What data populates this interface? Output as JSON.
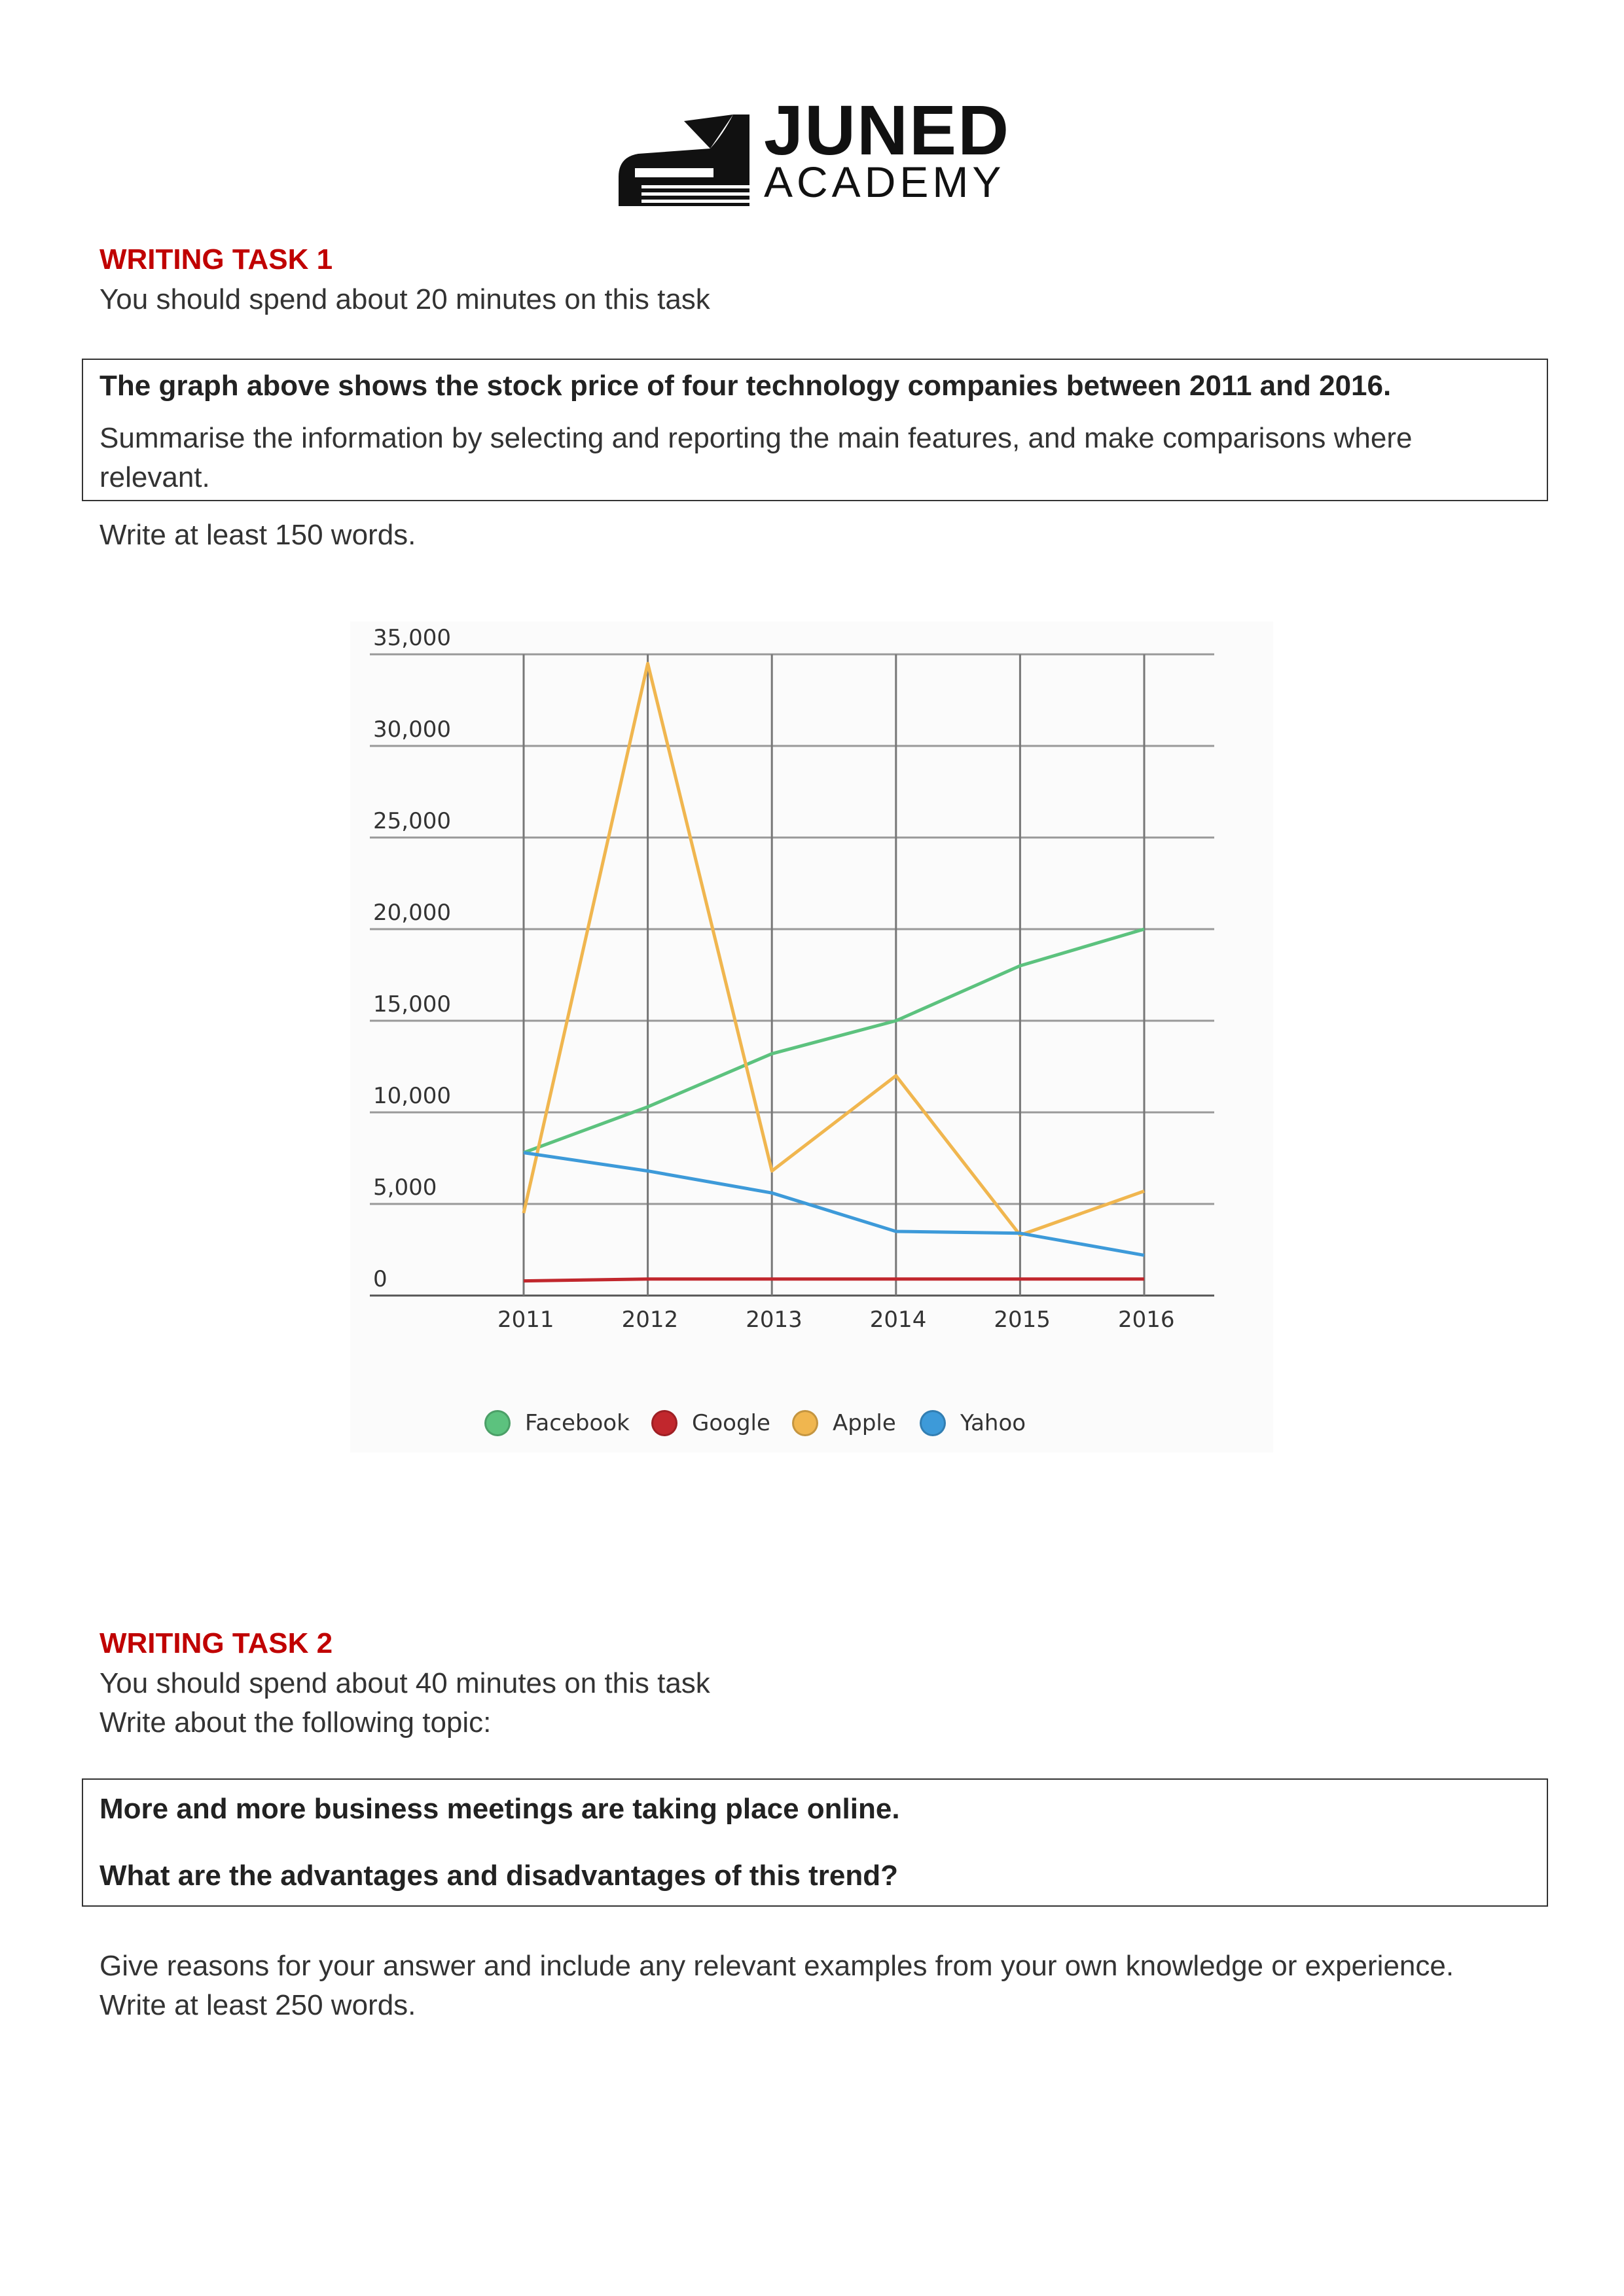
{
  "logo": {
    "line1": "JUNED",
    "line2": "ACADEMY"
  },
  "task1": {
    "heading": "WRITING TASK 1",
    "time_note": "You should spend about 20 minutes on this task",
    "prompt_bold": "The graph above shows the stock price of four technology companies between 2011 and 2016.",
    "prompt_line1": "Summarise the information by selecting and reporting the main features, and make comparisons where",
    "prompt_line2": "relevant.",
    "word_limit": "Write at least 150 words."
  },
  "task2": {
    "heading": "WRITING TASK 2",
    "time_note": "You should spend about 40 minutes on this task",
    "topic_intro": "Write about the following topic:",
    "prompt_line1": "More and more business meetings are taking place online.",
    "prompt_line2": "What are the advantages and disadvantages of this trend?",
    "reasons": "Give reasons for your answer and include any relevant examples from your own knowledge or experience.",
    "word_limit": "Write at least 250 words."
  },
  "chart_data": {
    "type": "line",
    "x": [
      "2011",
      "2012",
      "2013",
      "2014",
      "2015",
      "2016"
    ],
    "y_ticks": [
      "35,000",
      "30,000",
      "25,000",
      "20,000",
      "15,000",
      "10,000",
      "5,000",
      "0"
    ],
    "ylim": [
      0,
      35000
    ],
    "grid": true,
    "legend_position": "bottom",
    "series": [
      {
        "name": "Facebook",
        "color": "#5cc27e",
        "values": [
          7800,
          10300,
          13200,
          15000,
          18000,
          20000
        ]
      },
      {
        "name": "Google",
        "color": "#c1272d",
        "values": [
          800,
          900,
          900,
          900,
          900,
          900
        ]
      },
      {
        "name": "Apple",
        "color": "#f0b64f",
        "values": [
          4500,
          34500,
          6800,
          12000,
          3300,
          5700
        ]
      },
      {
        "name": "Yahoo",
        "color": "#3d9ad9",
        "values": [
          7800,
          6800,
          5600,
          3500,
          3400,
          2200
        ]
      }
    ]
  }
}
